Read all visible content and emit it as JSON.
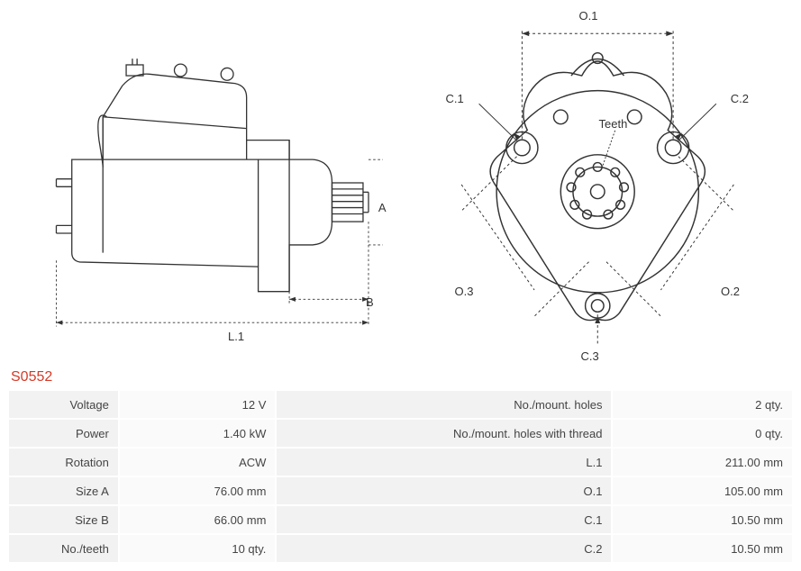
{
  "partCode": "S0552",
  "diagrams": {
    "side": {
      "labels": {
        "A": "A",
        "B": "B",
        "L1": "L.1"
      },
      "stroke": "#333333",
      "dash": "3,3"
    },
    "front": {
      "labels": {
        "O1": "O.1",
        "O2": "O.2",
        "O3": "O.3",
        "C1": "C.1",
        "C2": "C.2",
        "C3": "C.3",
        "Teeth": "Teeth"
      },
      "stroke": "#333333",
      "dash": "3,3"
    }
  },
  "specsLeft": [
    {
      "label": "Voltage",
      "value": "12 V"
    },
    {
      "label": "Power",
      "value": "1.40 kW"
    },
    {
      "label": "Rotation",
      "value": "ACW"
    },
    {
      "label": "Size A",
      "value": "76.00 mm"
    },
    {
      "label": "Size B",
      "value": "66.00 mm"
    },
    {
      "label": "No./teeth",
      "value": "10 qty."
    }
  ],
  "specsRight": [
    {
      "label": "No./mount. holes",
      "value": "2 qty."
    },
    {
      "label": "No./mount. holes with thread",
      "value": "0 qty."
    },
    {
      "label": "L.1",
      "value": "211.00 mm"
    },
    {
      "label": "O.1",
      "value": "105.00 mm"
    },
    {
      "label": "C.1",
      "value": "10.50 mm"
    },
    {
      "label": "C.2",
      "value": "10.50 mm"
    }
  ],
  "colors": {
    "accent": "#d43a28",
    "tableBg": "#f2f2f2",
    "tableAlt": "#fafafa",
    "stroke": "#333333"
  }
}
